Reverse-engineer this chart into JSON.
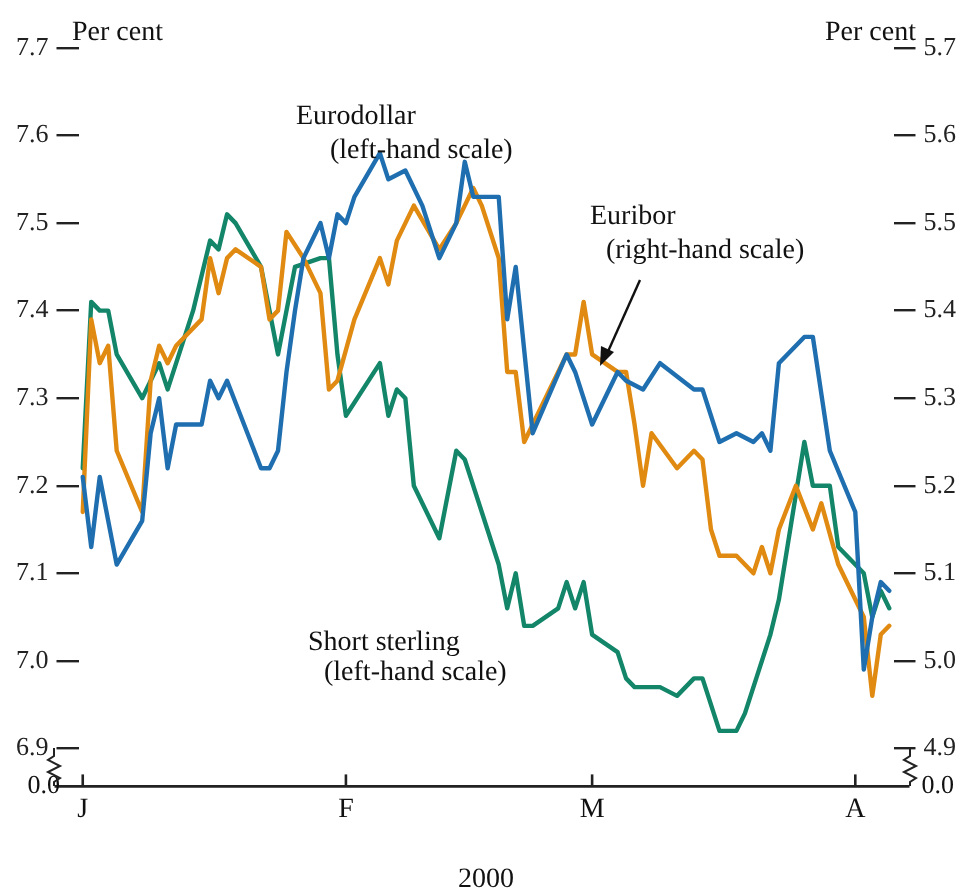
{
  "chart_data": {
    "type": "line",
    "xlabel": "2000",
    "ylabel": "Per cent",
    "y2label": "Per cent",
    "categories": [
      "J",
      null,
      null,
      null,
      null,
      null,
      null,
      null,
      null,
      null,
      null,
      null,
      null,
      null,
      null,
      null,
      null,
      null,
      null,
      null,
      null,
      null,
      null,
      null,
      null,
      null,
      null,
      null,
      null,
      null,
      null,
      "F",
      null,
      null,
      null,
      null,
      null,
      null,
      null,
      null,
      null,
      null,
      null,
      null,
      null,
      null,
      null,
      null,
      null,
      null,
      null,
      null,
      null,
      null,
      null,
      null,
      null,
      null,
      null,
      null,
      "M",
      null,
      null,
      null,
      null,
      null,
      null,
      null,
      null,
      null,
      null,
      null,
      null,
      null,
      null,
      null,
      null,
      null,
      null,
      null,
      null,
      null,
      null,
      null,
      null,
      null,
      null,
      null,
      null,
      null,
      null,
      "A",
      null,
      null,
      null,
      null
    ],
    "ylim": [
      6.9,
      7.7
    ],
    "yticks": [
      6.9,
      {
        "value": 7,
        "label": "7.0"
      },
      7.1,
      7.2,
      7.3,
      7.4,
      7.5,
      7.6,
      7.7
    ],
    "y2lim": [
      4.9,
      5.7
    ],
    "y2ticks": [
      4.9,
      {
        "value": 5,
        "label": "5.0"
      },
      5.1,
      5.2,
      5.3,
      5.4,
      5.5,
      5.6,
      5.7
    ],
    "annotations": [
      "0.0",
      "0.0"
    ],
    "grid": false,
    "legend": false,
    "marker": "none",
    "line_style": "solid",
    "series": [
      {
        "name": "Eurodollar (left-hand scale)",
        "color": "#1f6fb0",
        "axis": "y",
        "values": [
          7.21,
          7.13,
          7.21,
          null,
          7.11,
          null,
          null,
          7.16,
          7.26,
          7.3,
          7.22,
          7.27,
          null,
          null,
          7.27,
          7.32,
          7.3,
          7.32,
          null,
          null,
          null,
          7.22,
          7.22,
          7.24,
          7.33,
          7.4,
          7.46,
          null,
          7.5,
          7.46,
          7.51,
          7.5,
          7.53,
          null,
          null,
          7.58,
          7.55,
          null,
          7.56,
          null,
          7.52,
          null,
          7.46,
          null,
          7.5,
          7.57,
          7.53,
          null,
          null,
          7.53,
          7.39,
          7.45,
          null,
          7.26,
          null,
          null,
          null,
          7.35,
          7.33,
          null,
          7.27,
          null,
          null,
          7.33,
          7.32,
          null,
          7.31,
          null,
          7.34,
          null,
          null,
          null,
          7.31,
          7.31,
          null,
          7.25,
          null,
          7.26,
          null,
          7.25,
          7.26,
          7.24,
          7.34,
          null,
          null,
          7.37,
          7.37,
          null,
          7.24,
          null,
          null,
          7.17,
          6.99,
          7.05,
          7.09,
          7.08
        ]
      },
      {
        "name": "Euribor (right-hand scale)",
        "color": "#e08a12",
        "axis": "y2",
        "values": [
          5.17,
          5.39,
          5.34,
          5.36,
          5.24,
          null,
          null,
          5.17,
          5.32,
          5.36,
          5.34,
          5.36,
          null,
          null,
          5.39,
          5.46,
          5.42,
          5.46,
          5.47,
          null,
          null,
          5.45,
          5.39,
          5.4,
          5.49,
          null,
          5.46,
          null,
          5.42,
          5.31,
          5.32,
          null,
          5.39,
          null,
          null,
          5.46,
          5.43,
          5.48,
          null,
          5.52,
          null,
          null,
          5.47,
          null,
          5.5,
          null,
          5.54,
          5.52,
          null,
          5.46,
          5.33,
          5.33,
          5.25,
          null,
          null,
          null,
          null,
          5.35,
          5.35,
          5.41,
          5.35,
          null,
          null,
          5.33,
          5.33,
          5.27,
          5.2,
          5.26,
          null,
          null,
          5.22,
          null,
          5.24,
          5.23,
          5.15,
          5.12,
          null,
          5.12,
          null,
          5.1,
          5.13,
          5.1,
          5.15,
          null,
          5.2,
          null,
          5.15,
          5.18,
          null,
          5.11,
          null,
          5.07,
          5.05,
          4.96,
          5.03,
          5.04
        ]
      },
      {
        "name": "Short sterling (left-hand scale)",
        "color": "#13866a",
        "axis": "y",
        "values": [
          7.22,
          7.41,
          7.4,
          7.4,
          7.35,
          null,
          null,
          7.3,
          null,
          7.34,
          7.31,
          null,
          null,
          7.4,
          null,
          7.48,
          7.47,
          7.51,
          7.5,
          null,
          null,
          7.45,
          null,
          7.35,
          null,
          7.45,
          null,
          null,
          7.46,
          7.46,
          7.35,
          7.28,
          null,
          null,
          null,
          7.34,
          7.28,
          7.31,
          7.3,
          7.2,
          null,
          null,
          7.14,
          null,
          7.24,
          7.23,
          null,
          7.17,
          null,
          7.11,
          7.06,
          7.1,
          7.04,
          7.04,
          null,
          null,
          7.06,
          7.09,
          7.06,
          7.09,
          7.03,
          null,
          null,
          7.01,
          6.98,
          6.97,
          6.97,
          null,
          6.97,
          null,
          6.96,
          null,
          6.98,
          6.98,
          null,
          6.92,
          null,
          6.92,
          6.94,
          null,
          null,
          7.03,
          7.07,
          null,
          null,
          7.25,
          7.2,
          7.2,
          7.2,
          7.13,
          null,
          7.11,
          7.1,
          7.05,
          7.08,
          7.06
        ]
      }
    ]
  }
}
